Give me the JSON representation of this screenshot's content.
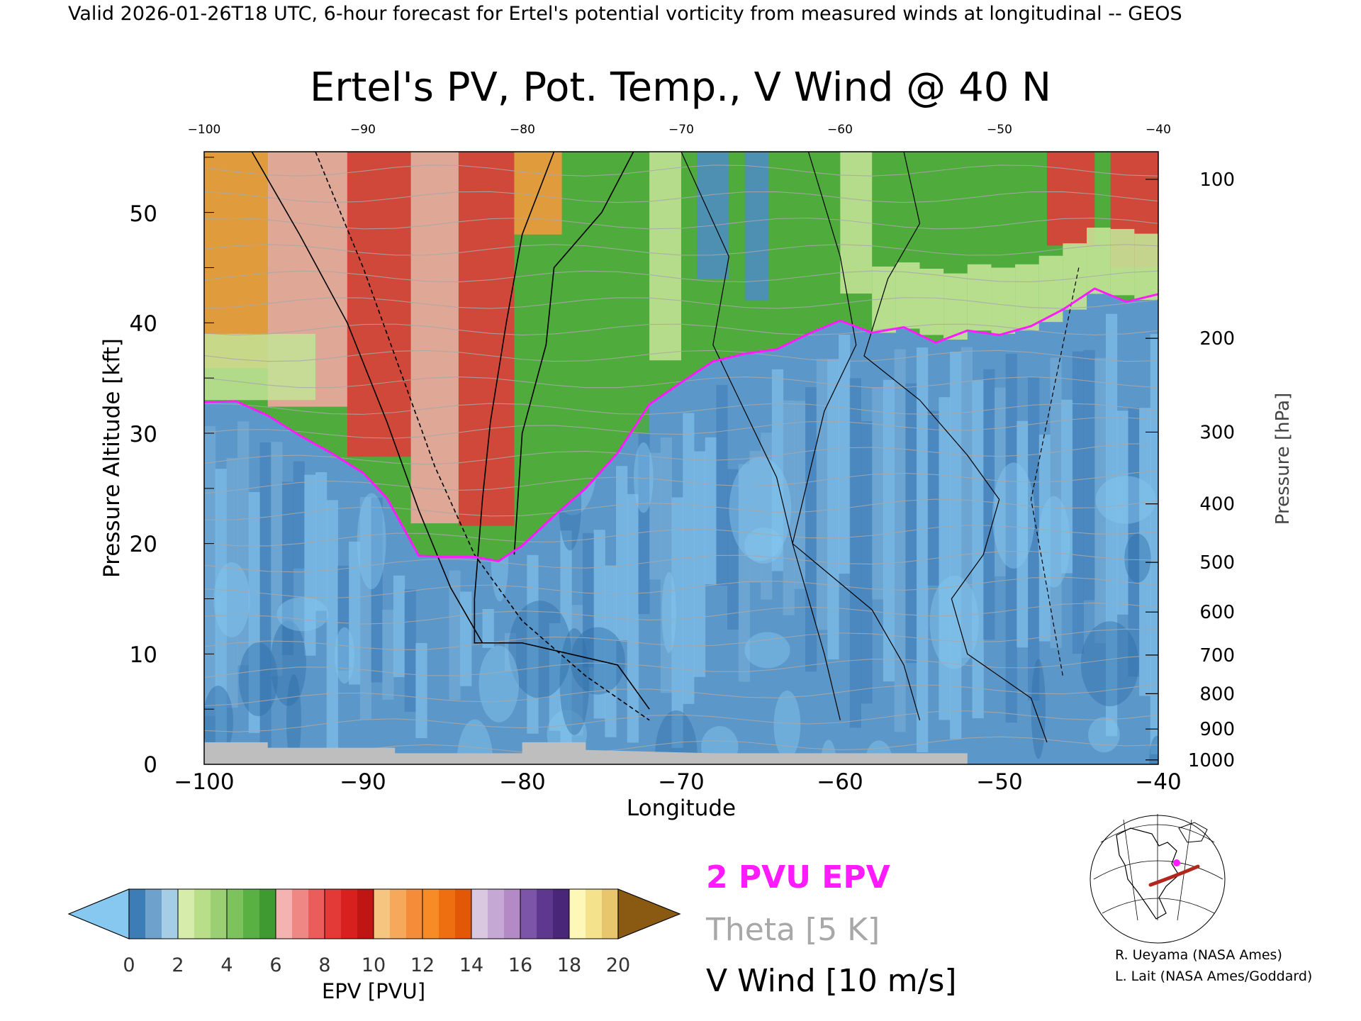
{
  "header": {
    "valid_line": "Valid 2026-01-26T18 UTC, 6-hour forecast for Ertel's potential vorticity from measured winds at longitudinal -- GEOS"
  },
  "chart_data": {
    "type": "heatmap",
    "title": "Ertel's PV, Pot. Temp., V Wind @ 40 N",
    "xlabel": "Longitude",
    "ylabel_left": "Pressure Altitude [kft]",
    "ylabel_right": "Pressure [hPa]",
    "xlim": [
      -100,
      -40
    ],
    "ylim": [
      0,
      55.5
    ],
    "x_ticks": [
      -100,
      -90,
      -80,
      -70,
      -60,
      -50,
      -40
    ],
    "x_tick_labels": [
      "−100",
      "−90",
      "−80",
      "−70",
      "−60",
      "−50",
      "−40"
    ],
    "top_tick_labels": [
      "−100",
      "−90",
      "−80",
      "−70",
      "−60",
      "−50",
      "−40"
    ],
    "y_ticks": [
      0,
      10,
      20,
      30,
      40,
      50
    ],
    "pressure_ticks": [
      {
        "label": "100",
        "kft": 53.0
      },
      {
        "label": "200",
        "kft": 38.6
      },
      {
        "label": "300",
        "kft": 30.1
      },
      {
        "label": "400",
        "kft": 23.6
      },
      {
        "label": "500",
        "kft": 18.3
      },
      {
        "label": "600",
        "kft": 13.8
      },
      {
        "label": "700",
        "kft": 9.9
      },
      {
        "label": "800",
        "kft": 6.4
      },
      {
        "label": "900",
        "kft": 3.2
      },
      {
        "label": "1000",
        "kft": 0.4
      }
    ],
    "tropopause_2pvu_kft": [
      [
        -100,
        32.8
      ],
      [
        -98,
        32.9
      ],
      [
        -96,
        31.6
      ],
      [
        -94,
        29.8
      ],
      [
        -92,
        28.2
      ],
      [
        -90,
        26.4
      ],
      [
        -88.5,
        24.1
      ],
      [
        -87.5,
        21.5
      ],
      [
        -86.5,
        18.9
      ],
      [
        -85,
        18.8
      ],
      [
        -83,
        18.8
      ],
      [
        -81.5,
        18.4
      ],
      [
        -80,
        19.8
      ],
      [
        -78,
        22.5
      ],
      [
        -76,
        25.0
      ],
      [
        -74,
        28.2
      ],
      [
        -72,
        32.6
      ],
      [
        -70,
        34.6
      ],
      [
        -68,
        36.5
      ],
      [
        -66,
        37.2
      ],
      [
        -64,
        37.6
      ],
      [
        -62,
        39.0
      ],
      [
        -60,
        40.2
      ],
      [
        -58,
        39.1
      ],
      [
        -56,
        39.6
      ],
      [
        -54,
        38.2
      ],
      [
        -52,
        39.3
      ],
      [
        -50,
        38.9
      ],
      [
        -48,
        39.7
      ],
      [
        -46,
        41.2
      ],
      [
        -44,
        43.1
      ],
      [
        -42,
        41.9
      ],
      [
        -40,
        42.6
      ]
    ],
    "epv_colorbar": {
      "label": "EPV [PVU]",
      "ticks": [
        "0",
        "2",
        "4",
        "6",
        "8",
        "10",
        "12",
        "14",
        "16",
        "18",
        "20"
      ],
      "under_color": "#86c8f0",
      "over_color": "#8b5a12",
      "colors": [
        [
          "#3c7db8",
          "#6ea2cc",
          "#a6cde6"
        ],
        [
          "#d6ecab",
          "#b8de8a",
          "#9ccf74"
        ],
        [
          "#7cc35e",
          "#5ab143",
          "#3f9a32"
        ],
        [
          "#f4b3b0",
          "#ef8785",
          "#ea5d5a"
        ],
        [
          "#e33a37",
          "#d8211e",
          "#c01613"
        ],
        [
          "#f6c580",
          "#f6a95a",
          "#f48c3a"
        ],
        [
          "#f78b25",
          "#ee6f10",
          "#e35806"
        ],
        [
          "#d9c8e0",
          "#c6a8d4",
          "#b38ac6"
        ],
        [
          "#7d55a8",
          "#5e378f",
          "#4a2678"
        ],
        [
          "#fdf7b8",
          "#f5e28c",
          "#e7c66d"
        ]
      ]
    },
    "legend": {
      "pvu_label": "2 PVU EPV",
      "pvu_color": "#ff1aff",
      "theta_label": "Theta [5 K]",
      "theta_color": "#a8a8a8",
      "wind_label": "V Wind [10 m/s]",
      "wind_color": "#000000"
    },
    "background_colors": {
      "stratosphere_red": "#e23a3a",
      "stratosphere_pink": "#f2a6a3",
      "stratosphere_green": "#4eab3c",
      "light_green": "#c3e396",
      "orange": "#f59a3c",
      "trop_blue": "#4f8cc2",
      "trop_light": "#86c8f0",
      "ground": "#bebebe"
    }
  },
  "credits": {
    "line1": "R. Ueyama (NASA Ames)",
    "line2": "L. Lait (NASA Ames/Goddard)"
  },
  "map_inset": {
    "icon": "globe-map-icon",
    "track_color": "#b3261e",
    "marker_color": "#ff1aff"
  }
}
